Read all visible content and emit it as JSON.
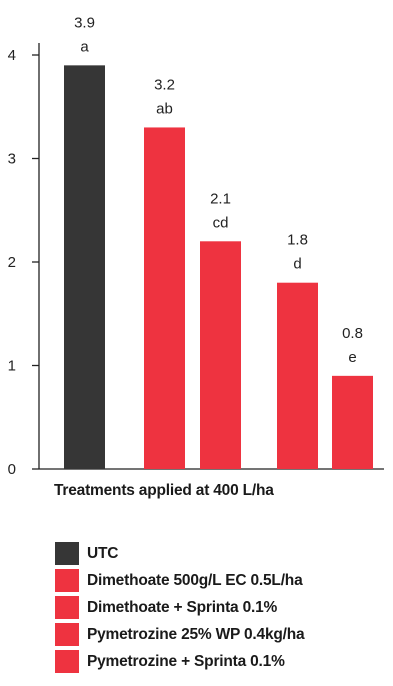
{
  "chart_data": {
    "type": "bar",
    "categories": [
      "UTC",
      "Dimethoate 500g/L EC 0.5L/ha",
      "Dimethoate + Sprinta 0.1%",
      "Pymetrozine 25% WP 0.4kg/ha",
      "Pymetrozine + Sprinta 0.1%"
    ],
    "values": [
      3.9,
      3.2,
      2.1,
      1.8,
      0.8
    ],
    "letters": [
      "a",
      "ab",
      "cd",
      "d",
      "e"
    ],
    "value_labels": [
      "3.9",
      "3.2",
      "2.1",
      "1.8",
      "0.8"
    ],
    "xlabel": "Treatments applied at 400 L/ha",
    "ylabel": "",
    "ylim": [
      0,
      4
    ],
    "yticks": [
      0,
      1,
      2,
      3,
      4
    ],
    "colors": [
      "#363636",
      "#ee3340",
      "#ee3340",
      "#ee3340",
      "#ee3340"
    ],
    "grid": false,
    "legend_position": "bottom"
  }
}
